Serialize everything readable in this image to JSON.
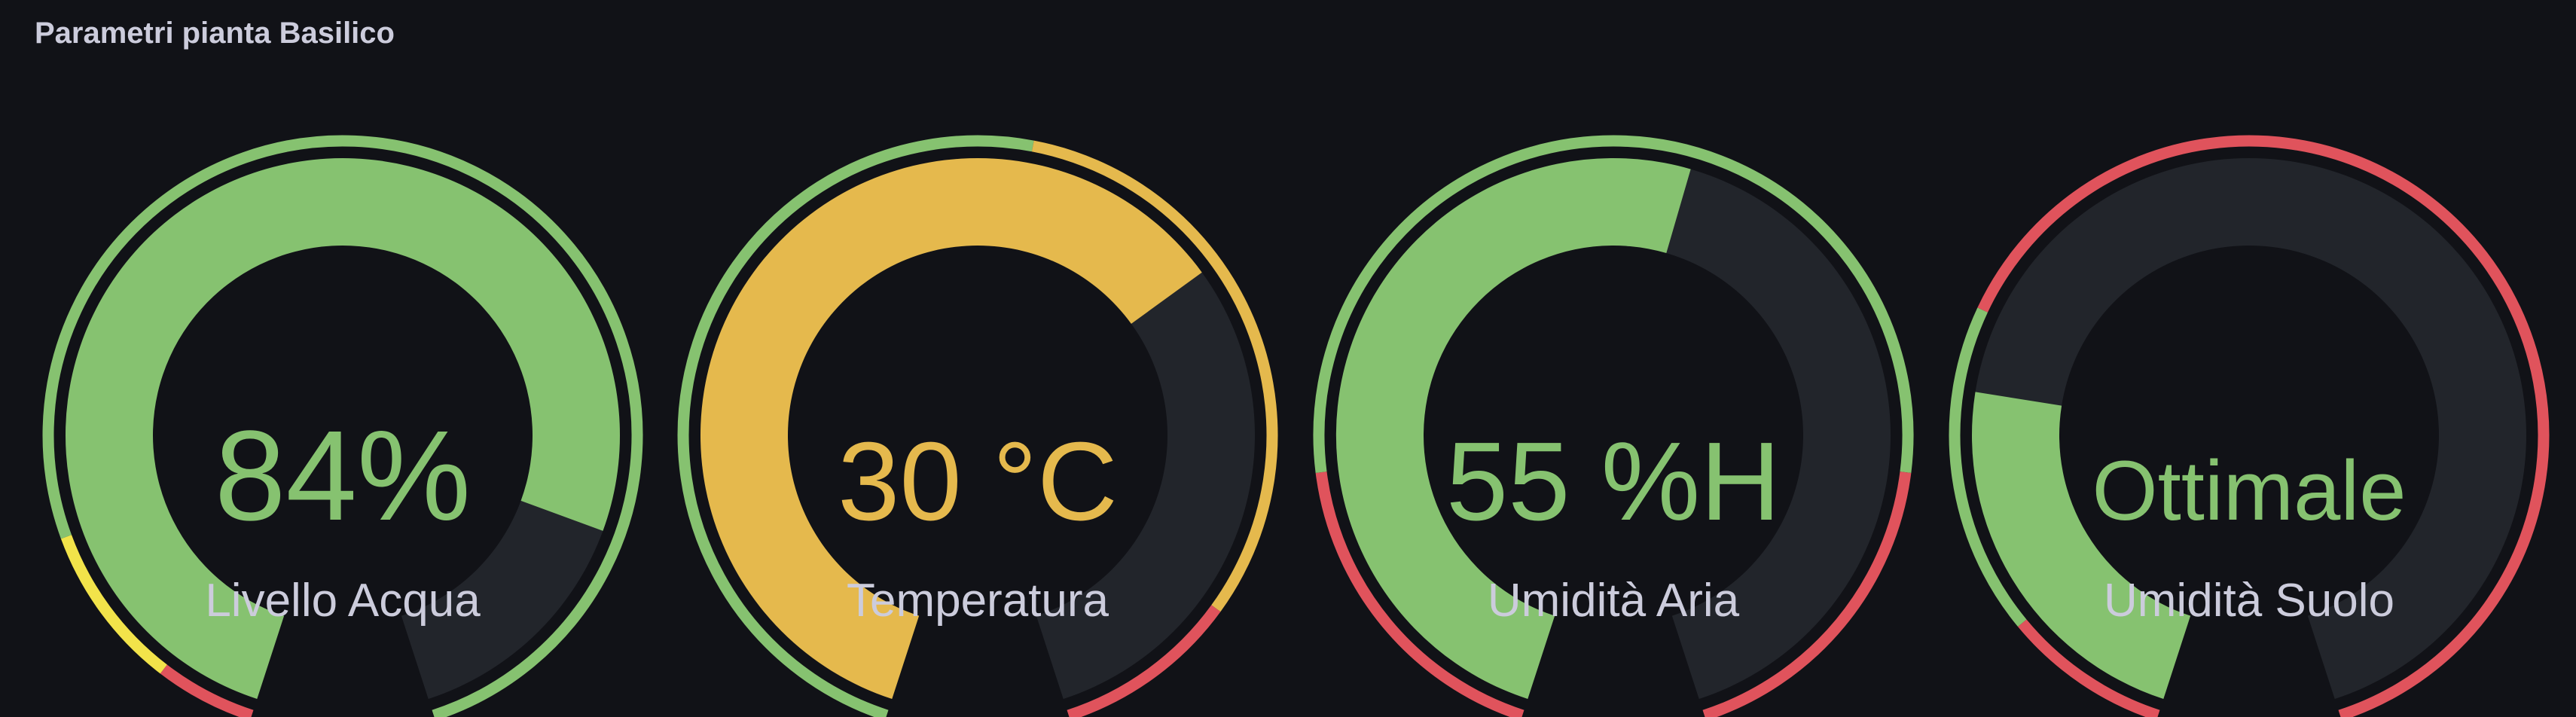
{
  "panel": {
    "title": "Parametri pianta Basilico"
  },
  "colors": {
    "background": "#111217",
    "track": "#22252b",
    "green": "#86c270",
    "yellow_fill": "#e5b94d",
    "yellow_threshold": "#f2e34a",
    "red": "#e0535c",
    "label": "#ccccdc"
  },
  "gauges": [
    {
      "label": "Livello Acqua",
      "value_text": "84%",
      "value": 84,
      "min": 0,
      "max": 100,
      "fill_color": "#86c270",
      "thresholds": [
        {
          "from": 0,
          "to": 6,
          "color": "#e0535c"
        },
        {
          "from": 6,
          "to": 16,
          "color": "#f2e34a"
        },
        {
          "from": 16,
          "to": 100,
          "color": "#86c270"
        }
      ]
    },
    {
      "label": "Temperatura",
      "value_text": "30 °C",
      "value": 30,
      "min": 0,
      "max": 45,
      "fill_color": "#e5b94d",
      "thresholds": [
        {
          "from": 0,
          "to": 24,
          "color": "#86c270"
        },
        {
          "from": 24,
          "to": 40,
          "color": "#e5b94d"
        },
        {
          "from": 40,
          "to": 45,
          "color": "#e0535c"
        }
      ]
    },
    {
      "label": "Umidità Aria",
      "value_text": "55 %H",
      "value": 55,
      "min": 0,
      "max": 100,
      "fill_color": "#86c270",
      "thresholds": [
        {
          "from": 0,
          "to": 20,
          "color": "#e0535c"
        },
        {
          "from": 20,
          "to": 80,
          "color": "#86c270"
        },
        {
          "from": 80,
          "to": 100,
          "color": "#e0535c"
        }
      ]
    },
    {
      "label": "Umidità Suolo",
      "value_text": "Ottimale",
      "value": 25,
      "min": 0,
      "max": 100,
      "fill_color": "#86c270",
      "thresholds": [
        {
          "from": 0,
          "to": 10,
          "color": "#e0535c"
        },
        {
          "from": 10,
          "to": 30,
          "color": "#86c270"
        },
        {
          "from": 30,
          "to": 100,
          "color": "#e0535c"
        }
      ]
    }
  ]
}
